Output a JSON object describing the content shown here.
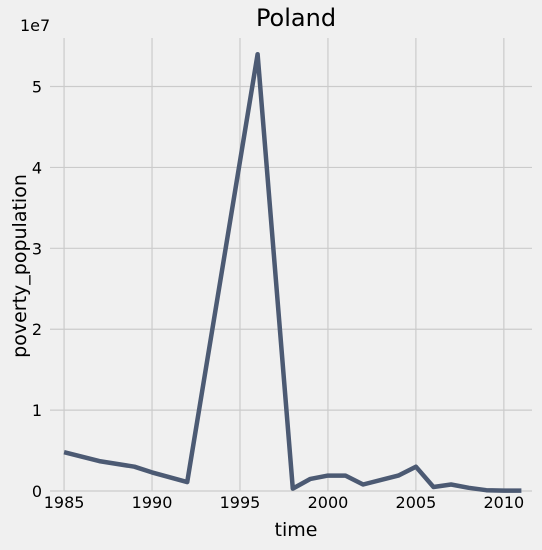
{
  "chart_data": {
    "type": "line",
    "title": "Poland",
    "xlabel": "time",
    "ylabel": "poverty_population",
    "y_offset_label": "1e7",
    "xlim": [
      1984.2,
      2011.6
    ],
    "ylim": [
      0,
      5.6
    ],
    "x_ticks": [
      1985,
      1990,
      1995,
      2000,
      2005,
      2010
    ],
    "y_ticks": [
      0,
      1,
      2,
      3,
      4,
      5
    ],
    "grid": true,
    "series_color": "#4c5a73",
    "x": [
      1985,
      1987,
      1989,
      1990,
      1992,
      1996,
      1998,
      1999,
      2000,
      2001,
      2002,
      2004,
      2005,
      2006,
      2007,
      2008,
      2009,
      2010,
      2011
    ],
    "y": [
      0.48,
      0.37,
      0.3,
      0.23,
      0.11,
      5.4,
      0.03,
      0.15,
      0.19,
      0.19,
      0.08,
      0.19,
      0.3,
      0.05,
      0.08,
      0.04,
      0.01,
      0.005,
      0.005
    ]
  }
}
